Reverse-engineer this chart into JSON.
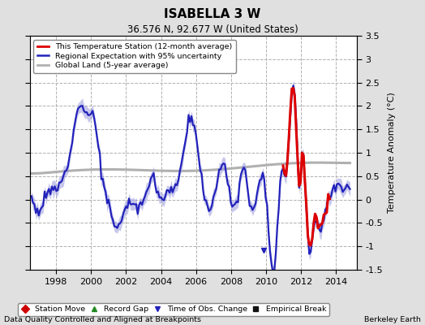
{
  "title": "ISABELLA 3 W",
  "subtitle": "36.576 N, 92.677 W (United States)",
  "ylabel": "Temperature Anomaly (°C)",
  "xlabel_left": "Data Quality Controlled and Aligned at Breakpoints",
  "xlabel_right": "Berkeley Earth",
  "ylim": [
    -1.5,
    3.5
  ],
  "xlim_start": 1996.5,
  "xlim_end": 2015.2,
  "xticks": [
    1998,
    2000,
    2002,
    2004,
    2006,
    2008,
    2010,
    2012,
    2014
  ],
  "yticks_right": [
    -1.5,
    -1.0,
    -0.5,
    0.0,
    0.5,
    1.0,
    1.5,
    2.0,
    2.5,
    3.0,
    3.5
  ],
  "bg_color": "#e0e0e0",
  "plot_bg_color": "#ffffff",
  "grid_color": "#b0b0b0",
  "regional_color": "#2222bb",
  "regional_fill_color": "#9999dd",
  "station_color": "#dd0000",
  "global_color": "#b0b0b0",
  "legend_items": [
    {
      "label": "This Temperature Station (12-month average)",
      "color": "#dd0000",
      "lw": 2.0
    },
    {
      "label": "Regional Expectation with 95% uncertainty",
      "color": "#2222bb",
      "lw": 1.8
    },
    {
      "label": "Global Land (5-year average)",
      "color": "#b0b0b0",
      "lw": 2.0
    }
  ],
  "marker_legend": [
    {
      "label": "Station Move",
      "color": "#cc0000",
      "marker": "D"
    },
    {
      "label": "Record Gap",
      "color": "#228822",
      "marker": "^"
    },
    {
      "label": "Time of Obs. Change",
      "color": "#2222bb",
      "marker": "v"
    },
    {
      "label": "Empirical Break",
      "color": "#111111",
      "marker": "s"
    }
  ],
  "time_obs_change_x": 2009.85,
  "time_obs_change_y": -1.08
}
